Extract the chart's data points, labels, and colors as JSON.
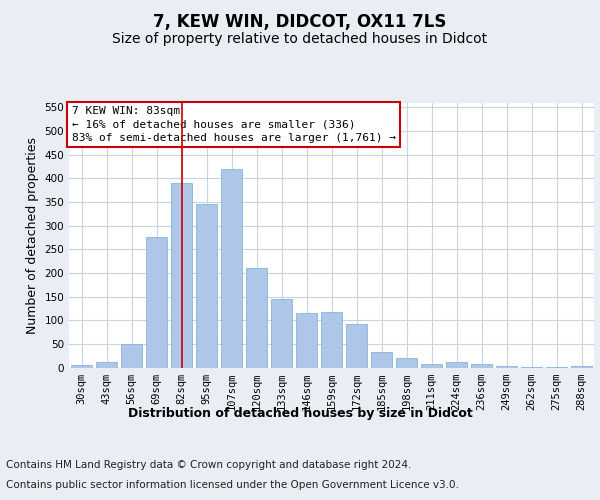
{
  "title": "7, KEW WIN, DIDCOT, OX11 7LS",
  "subtitle": "Size of property relative to detached houses in Didcot",
  "xlabel": "Distribution of detached houses by size in Didcot",
  "ylabel": "Number of detached properties",
  "categories": [
    "30sqm",
    "43sqm",
    "56sqm",
    "69sqm",
    "82sqm",
    "95sqm",
    "107sqm",
    "120sqm",
    "133sqm",
    "146sqm",
    "159sqm",
    "172sqm",
    "185sqm",
    "198sqm",
    "211sqm",
    "224sqm",
    "236sqm",
    "249sqm",
    "262sqm",
    "275sqm",
    "288sqm"
  ],
  "values": [
    5,
    12,
    50,
    275,
    390,
    345,
    420,
    210,
    145,
    115,
    117,
    91,
    33,
    20,
    8,
    12,
    8,
    3,
    2,
    1,
    3
  ],
  "bar_color": "#aec6e8",
  "bar_edge_color": "#7aaed0",
  "vline_x_index": 4,
  "vline_color": "#cc0000",
  "annotation_line1": "7 KEW WIN: 83sqm",
  "annotation_line2": "← 16% of detached houses are smaller (336)",
  "annotation_line3": "83% of semi-detached houses are larger (1,761) →",
  "annotation_box_color": "#ffffff",
  "annotation_box_edge_color": "#cc0000",
  "ylim": [
    0,
    560
  ],
  "yticks": [
    0,
    50,
    100,
    150,
    200,
    250,
    300,
    350,
    400,
    450,
    500,
    550
  ],
  "bg_color": "#e8eef4",
  "plot_bg_color": "#ffffff",
  "grid_color": "#c8d4e0",
  "footer_line1": "Contains HM Land Registry data © Crown copyright and database right 2024.",
  "footer_line2": "Contains public sector information licensed under the Open Government Licence v3.0.",
  "title_fontsize": 12,
  "subtitle_fontsize": 10,
  "xlabel_fontsize": 9,
  "ylabel_fontsize": 9,
  "tick_fontsize": 7.5,
  "footer_fontsize": 7.5,
  "annotation_fontsize": 8
}
